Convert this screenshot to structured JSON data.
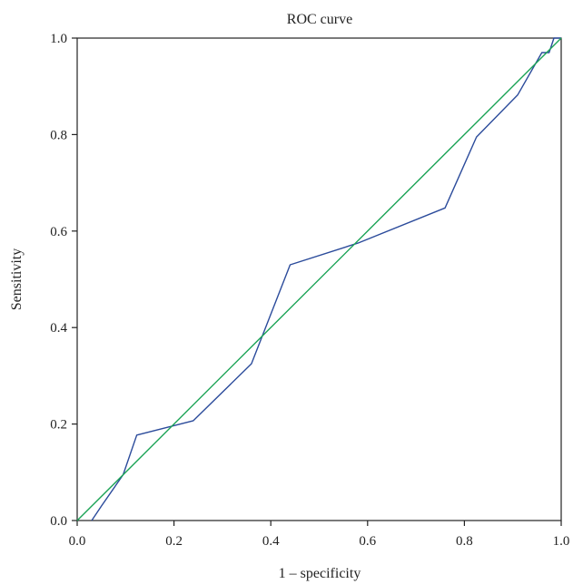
{
  "chart_data": {
    "type": "line",
    "title": "ROC curve",
    "xlabel": "1 – specificity",
    "ylabel": "Sensitivity",
    "xlim": [
      0,
      1
    ],
    "ylim": [
      0,
      1
    ],
    "xticks": [
      "0.0",
      "0.2",
      "0.4",
      "0.6",
      "0.8",
      "1.0"
    ],
    "yticks": [
      "0.0",
      "0.2",
      "0.4",
      "0.6",
      "0.8",
      "1.0"
    ],
    "grid": false,
    "series": [
      {
        "color": "#2b4b9b",
        "x": [
          0.03,
          0.05,
          0.095,
          0.123,
          0.24,
          0.36,
          0.44,
          0.58,
          0.76,
          0.825,
          0.91,
          0.96,
          0.975,
          0.985,
          1.0
        ],
        "y": [
          0.0,
          0.03,
          0.095,
          0.177,
          0.207,
          0.325,
          0.53,
          0.575,
          0.648,
          0.795,
          0.882,
          0.97,
          0.97,
          1.0,
          1.0
        ]
      },
      {
        "color": "#1aa355",
        "x": [
          0.0,
          1.0
        ],
        "y": [
          0.0,
          1.0
        ]
      }
    ]
  }
}
